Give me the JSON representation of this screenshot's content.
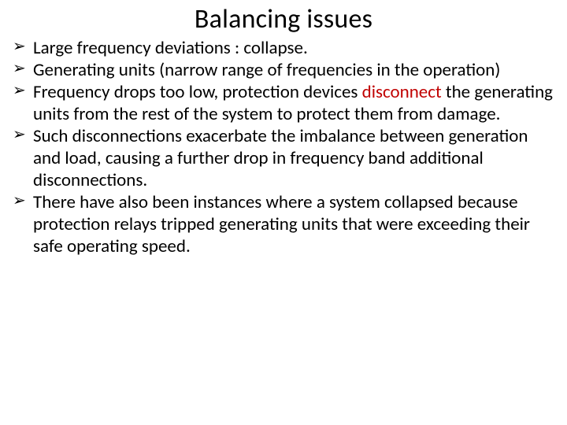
{
  "slide": {
    "title": "Balancing issues",
    "title_fontsize": 34,
    "title_color": "#000000",
    "body_fontsize": 23,
    "body_color": "#000000",
    "highlight_color": "#c00000",
    "background_color": "#ffffff",
    "bullet_marker": "➢",
    "bullets": [
      {
        "text_before": "Large frequency deviations : collapse.",
        "highlight": "",
        "text_after": ""
      },
      {
        "text_before": "Generating units (narrow range of frequencies in the operation)",
        "highlight": "",
        "text_after": ""
      },
      {
        "text_before": "Frequency drops too low, protection devices ",
        "highlight": "disconnect",
        "text_after": " the generating units from the rest of the system to protect them from damage."
      },
      {
        "text_before": "Such disconnections exacerbate the imbalance between generation and load, causing a further drop in frequency band additional disconnections.",
        "highlight": "",
        "text_after": ""
      },
      {
        "text_before": "There have also been instances where a system collapsed because protection relays tripped generating units that were exceeding their safe operating speed.",
        "highlight": "",
        "text_after": ""
      }
    ]
  }
}
